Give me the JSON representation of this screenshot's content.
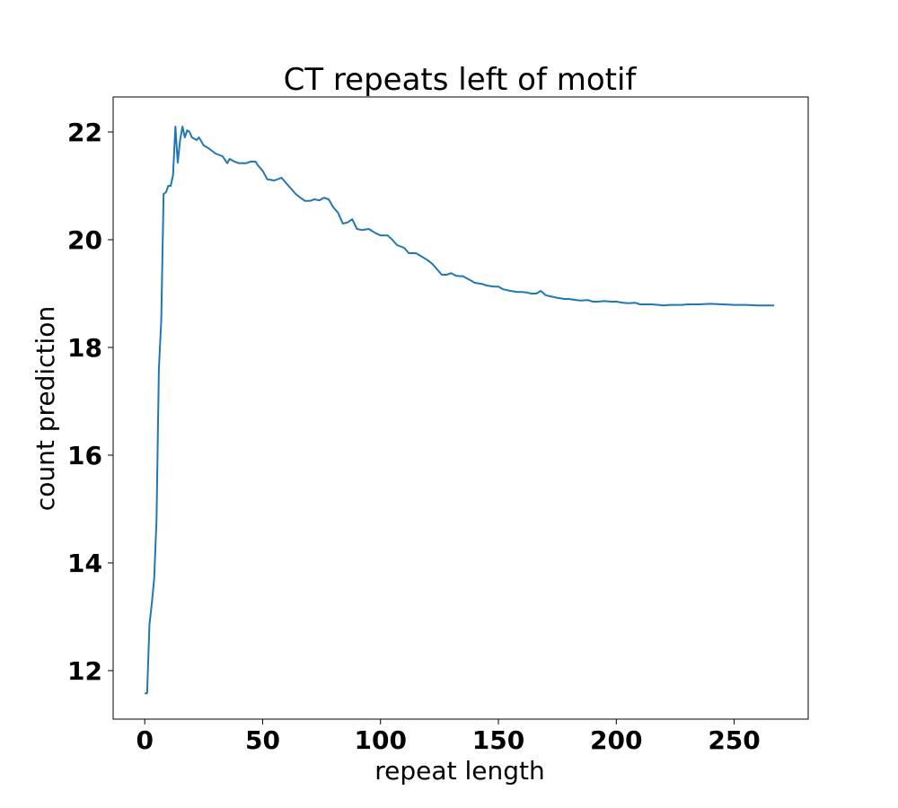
{
  "chart_data": {
    "type": "line",
    "title": "CT repeats left of motif",
    "xlabel": "repeat length",
    "ylabel": "count prediction",
    "xlim": [
      -13.4,
      281.4
    ],
    "ylim": [
      11.1,
      22.65
    ],
    "x_ticks": [
      0,
      50,
      100,
      150,
      200,
      250
    ],
    "y_ticks": [
      12,
      14,
      16,
      18,
      20,
      22
    ],
    "x_tick_labels": [
      "0",
      "50",
      "100",
      "150",
      "200",
      "250"
    ],
    "y_tick_labels": [
      "12",
      "14",
      "16",
      "18",
      "20",
      "22"
    ],
    "grid": false,
    "legend": "none",
    "series": [
      {
        "color": "#1f77b4",
        "points": [
          [
            0,
            11.58
          ],
          [
            1,
            11.58
          ],
          [
            2,
            12.85
          ],
          [
            3,
            13.25
          ],
          [
            4,
            13.7
          ],
          [
            5,
            14.8
          ],
          [
            6,
            17.6
          ],
          [
            7,
            18.5
          ],
          [
            8,
            20.85
          ],
          [
            9,
            20.88
          ],
          [
            10,
            21.0
          ],
          [
            11,
            21.0
          ],
          [
            12,
            21.2
          ],
          [
            13,
            22.1
          ],
          [
            14,
            21.43
          ],
          [
            15,
            21.85
          ],
          [
            16,
            22.1
          ],
          [
            17,
            21.9
          ],
          [
            18,
            22.03
          ],
          [
            19,
            22.0
          ],
          [
            20,
            21.9
          ],
          [
            22,
            21.85
          ],
          [
            23,
            21.9
          ],
          [
            25,
            21.75
          ],
          [
            27,
            21.7
          ],
          [
            30,
            21.6
          ],
          [
            33,
            21.55
          ],
          [
            35,
            21.42
          ],
          [
            36,
            21.5
          ],
          [
            38,
            21.45
          ],
          [
            40,
            21.42
          ],
          [
            43,
            21.42
          ],
          [
            45,
            21.45
          ],
          [
            47,
            21.45
          ],
          [
            48,
            21.38
          ],
          [
            50,
            21.28
          ],
          [
            52,
            21.12
          ],
          [
            55,
            21.1
          ],
          [
            58,
            21.15
          ],
          [
            60,
            21.05
          ],
          [
            62,
            20.95
          ],
          [
            64,
            20.85
          ],
          [
            66,
            20.78
          ],
          [
            68,
            20.72
          ],
          [
            70,
            20.72
          ],
          [
            72,
            20.75
          ],
          [
            74,
            20.73
          ],
          [
            76,
            20.78
          ],
          [
            78,
            20.75
          ],
          [
            80,
            20.6
          ],
          [
            82,
            20.5
          ],
          [
            84,
            20.3
          ],
          [
            86,
            20.32
          ],
          [
            88,
            20.38
          ],
          [
            90,
            20.2
          ],
          [
            92,
            20.18
          ],
          [
            95,
            20.2
          ],
          [
            98,
            20.12
          ],
          [
            100,
            20.08
          ],
          [
            103,
            20.08
          ],
          [
            105,
            20.0
          ],
          [
            107,
            19.9
          ],
          [
            110,
            19.85
          ],
          [
            112,
            19.75
          ],
          [
            115,
            19.75
          ],
          [
            117,
            19.7
          ],
          [
            120,
            19.62
          ],
          [
            122,
            19.55
          ],
          [
            124,
            19.45
          ],
          [
            126,
            19.35
          ],
          [
            128,
            19.35
          ],
          [
            130,
            19.38
          ],
          [
            132,
            19.33
          ],
          [
            135,
            19.32
          ],
          [
            138,
            19.25
          ],
          [
            140,
            19.2
          ],
          [
            143,
            19.18
          ],
          [
            145,
            19.15
          ],
          [
            148,
            19.13
          ],
          [
            150,
            19.13
          ],
          [
            152,
            19.08
          ],
          [
            155,
            19.05
          ],
          [
            158,
            19.03
          ],
          [
            160,
            19.03
          ],
          [
            162,
            19.02
          ],
          [
            164,
            19.0
          ],
          [
            166,
            19.0
          ],
          [
            168,
            19.05
          ],
          [
            170,
            18.97
          ],
          [
            172,
            18.95
          ],
          [
            175,
            18.92
          ],
          [
            178,
            18.9
          ],
          [
            180,
            18.9
          ],
          [
            183,
            18.88
          ],
          [
            185,
            18.87
          ],
          [
            188,
            18.88
          ],
          [
            190,
            18.85
          ],
          [
            192,
            18.85
          ],
          [
            195,
            18.86
          ],
          [
            198,
            18.85
          ],
          [
            200,
            18.85
          ],
          [
            203,
            18.83
          ],
          [
            205,
            18.82
          ],
          [
            208,
            18.83
          ],
          [
            210,
            18.8
          ],
          [
            213,
            18.8
          ],
          [
            215,
            18.8
          ],
          [
            218,
            18.79
          ],
          [
            220,
            18.78
          ],
          [
            223,
            18.79
          ],
          [
            225,
            18.79
          ],
          [
            228,
            18.79
          ],
          [
            230,
            18.8
          ],
          [
            235,
            18.8
          ],
          [
            240,
            18.81
          ],
          [
            245,
            18.8
          ],
          [
            250,
            18.79
          ],
          [
            255,
            18.79
          ],
          [
            260,
            18.78
          ],
          [
            265,
            18.78
          ],
          [
            267,
            18.78
          ]
        ]
      }
    ]
  }
}
